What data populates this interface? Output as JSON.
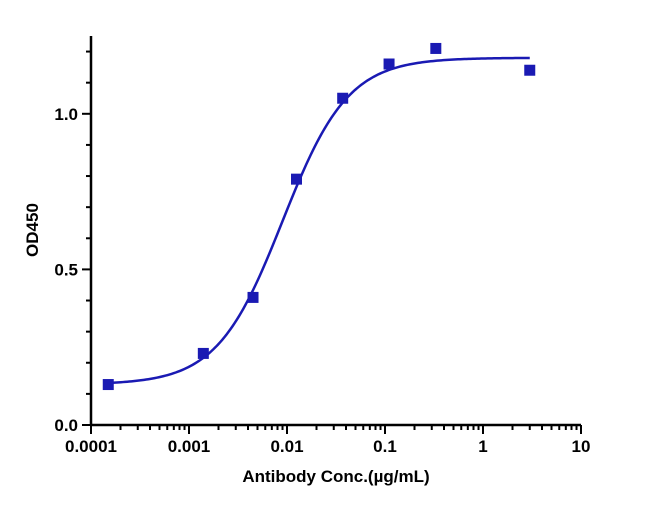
{
  "chart_data": {
    "type": "scatter",
    "xlabel": "Antibody Conc.(µg/mL)",
    "ylabel": "OD450",
    "x_scale": "log",
    "xlim": [
      0.0001,
      10
    ],
    "ylim": [
      0.0,
      1.25
    ],
    "x_ticks": [
      "0.0001",
      "0.001",
      "0.01",
      "0.1",
      "1",
      "10"
    ],
    "y_ticks": [
      "0.0",
      "0.5",
      "1.0"
    ],
    "grid": false,
    "colors": {
      "marker": "#1a1ab3",
      "curve": "#1a1ab3",
      "axis": "#000000"
    },
    "series": [
      {
        "points": [
          {
            "x": 0.00015,
            "y": 0.13
          },
          {
            "x": 0.0014,
            "y": 0.23
          },
          {
            "x": 0.0045,
            "y": 0.41
          },
          {
            "x": 0.0125,
            "y": 0.79
          },
          {
            "x": 0.037,
            "y": 1.05
          },
          {
            "x": 0.11,
            "y": 1.16
          },
          {
            "x": 0.33,
            "y": 1.21
          },
          {
            "x": 3.0,
            "y": 1.14
          }
        ],
        "fit": {
          "model": "4PL",
          "bottom": 0.13,
          "top": 1.18,
          "ec50": 0.009,
          "hill": 1.3
        }
      }
    ]
  }
}
